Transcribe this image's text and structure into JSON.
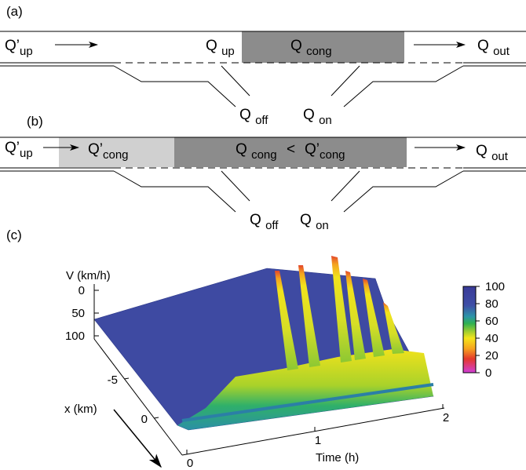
{
  "panel_a": {
    "label": "(a)",
    "q_up_prime": {
      "main": "Q’",
      "sub": "up"
    },
    "q_up": {
      "main": "Q ",
      "sub": "up"
    },
    "q_cong": {
      "main": "Q ",
      "sub": "cong"
    },
    "q_out": {
      "main": "Q ",
      "sub": "out"
    },
    "q_off": {
      "main": "Q ",
      "sub": "off"
    },
    "q_on": {
      "main": "Q ",
      "sub": "on"
    }
  },
  "panel_b": {
    "label": "(b)",
    "q_up_prime": {
      "main": "Q’",
      "sub": "up"
    },
    "q_cong_prime": {
      "main": "Q’",
      "sub": "cong"
    },
    "q_cong": {
      "main": "Q ",
      "sub": "cong"
    },
    "less_than": "<",
    "q_cong_prime_2": {
      "main": "Q’",
      "sub": "cong"
    },
    "q_out": {
      "main": "Q ",
      "sub": "out"
    },
    "q_off": {
      "main": "Q ",
      "sub": "off"
    },
    "q_on": {
      "main": "Q ",
      "sub": "on"
    }
  },
  "panel_c": {
    "label": "(c)",
    "v_axis": {
      "label": "V (km/h)",
      "ticks": [
        0,
        50,
        100
      ]
    },
    "x_axis": {
      "label": "x (km)",
      "ticks": [
        -5,
        0
      ]
    },
    "time_axis": {
      "label": "Time (h)",
      "ticks": [
        0,
        1,
        2
      ]
    },
    "colorbar": {
      "ticks": [
        0,
        20,
        40,
        60,
        80,
        100
      ]
    }
  }
}
